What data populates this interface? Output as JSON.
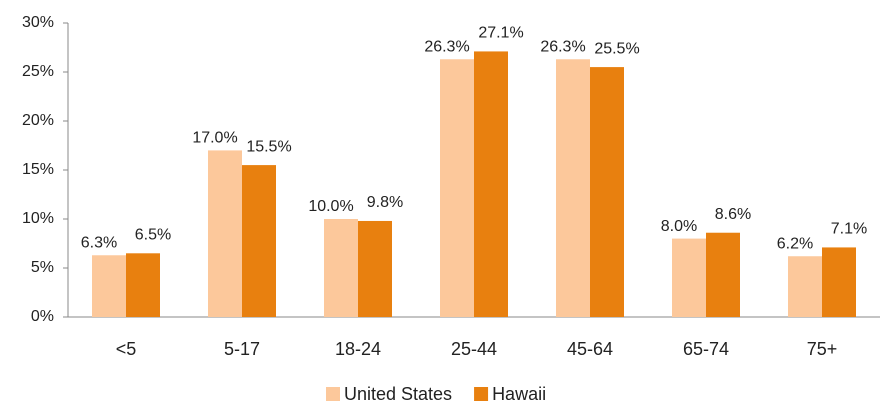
{
  "chart_data": {
    "type": "bar",
    "categories": [
      "<5",
      "5-17",
      "18-24",
      "25-44",
      "45-64",
      "65-74",
      "75+"
    ],
    "series": [
      {
        "name": "United States",
        "color": "#fcc89b",
        "values": [
          6.3,
          17.0,
          10.0,
          26.3,
          26.3,
          8.0,
          6.2
        ],
        "value_labels": [
          "6.3%",
          "17.0%",
          "10.0%",
          "26.3%",
          "26.3%",
          "8.0%",
          "6.2%"
        ]
      },
      {
        "name": "Hawaii",
        "color": "#e8800f",
        "values": [
          6.5,
          15.5,
          9.8,
          27.1,
          25.5,
          8.6,
          7.1
        ],
        "value_labels": [
          "6.5%",
          "15.5%",
          "9.8%",
          "27.1%",
          "25.5%",
          "8.6%",
          "7.1%"
        ]
      }
    ],
    "ylim": [
      0,
      30
    ],
    "yticks": [
      {
        "value": 0,
        "label": "0%"
      },
      {
        "value": 5,
        "label": "5%"
      },
      {
        "value": 10,
        "label": "10%"
      },
      {
        "value": 15,
        "label": "15%"
      },
      {
        "value": 20,
        "label": "20%"
      },
      {
        "value": 25,
        "label": "25%"
      },
      {
        "value": 30,
        "label": "30%"
      }
    ],
    "legend": "bottom"
  }
}
